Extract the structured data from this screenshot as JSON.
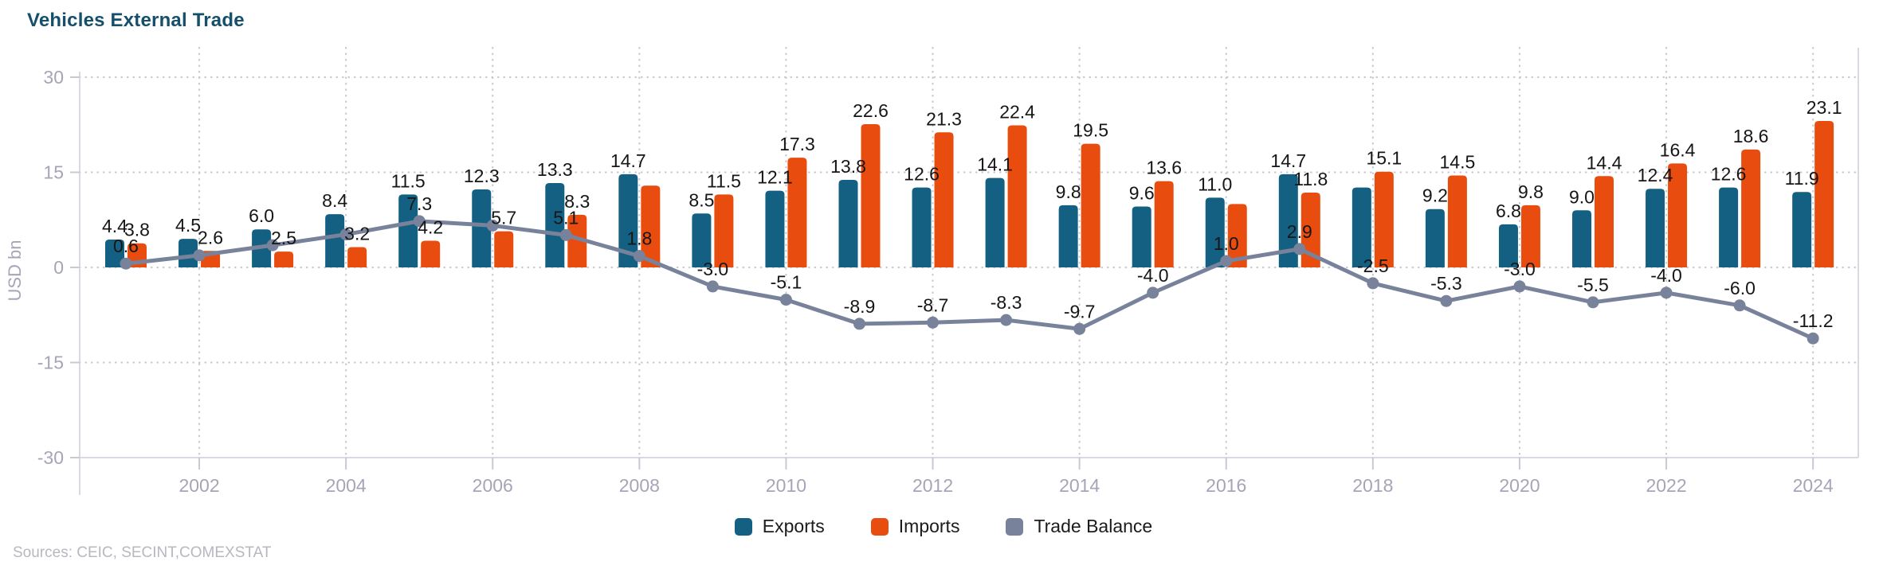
{
  "title": "Vehicles External Trade",
  "sources": "Sources: CEIC, SECINT,COMEXSTAT",
  "y_axis": {
    "label": "USD bn",
    "ticks": [
      "30",
      "15",
      "0",
      "-15",
      "-30"
    ]
  },
  "x_axis": {
    "ticks": [
      "2002",
      "2004",
      "2006",
      "2008",
      "2010",
      "2012",
      "2014",
      "2016",
      "2018",
      "2020",
      "2022",
      "2024"
    ]
  },
  "legend": [
    {
      "label": "Exports",
      "color": "#136083"
    },
    {
      "label": "Imports",
      "color": "#e84d0f"
    },
    {
      "label": "Trade Balance",
      "color": "#78829b"
    }
  ],
  "colors": {
    "background": "#ffffff",
    "exports": "#136083",
    "imports": "#e84d0f",
    "trade_balance": "#78829b",
    "grid": "#c9c9d3",
    "axis": "#d9d9e1",
    "tick_text": "#a5a5b7",
    "label_text": "#161616",
    "title": "#14506c",
    "sources": "#b7b7c2"
  },
  "chart_data": {
    "type": "bar",
    "subtype": "grouped bars with line overlay",
    "title": "Vehicles External Trade",
    "xlabel": "",
    "ylabel": "USD bn",
    "ylim": [
      -30,
      30
    ],
    "y_ticks": [
      30,
      15,
      0,
      -15,
      -30
    ],
    "x_tick_years": [
      2002,
      2004,
      2006,
      2008,
      2010,
      2012,
      2014,
      2016,
      2018,
      2020,
      2022,
      2024
    ],
    "grid": true,
    "legend_position": "bottom",
    "categories": [
      2001,
      2002,
      2003,
      2004,
      2005,
      2006,
      2007,
      2008,
      2009,
      2010,
      2011,
      2012,
      2013,
      2014,
      2015,
      2016,
      2017,
      2018,
      2019,
      2020,
      2021,
      2022,
      2023,
      2024
    ],
    "series": [
      {
        "name": "Exports",
        "type": "bar",
        "color": "#136083",
        "values": [
          4.4,
          4.5,
          6.0,
          8.4,
          11.5,
          12.3,
          13.3,
          14.7,
          8.5,
          12.1,
          13.8,
          12.6,
          14.1,
          9.8,
          9.6,
          11.0,
          14.7,
          12.6,
          9.2,
          6.8,
          9.0,
          12.4,
          12.6,
          11.9
        ],
        "data_labels": [
          "4.4",
          "4.5",
          "6.0",
          "8.4",
          "11.5",
          "12.3",
          "13.3",
          "14.7",
          "8.5",
          "12.1",
          "13.8",
          "12.6",
          "14.1",
          "9.8",
          "9.6",
          "11.0",
          "14.7",
          "",
          "9.2",
          "6.8",
          "9.0",
          "12.4",
          "12.6",
          "11.9"
        ]
      },
      {
        "name": "Imports",
        "type": "bar",
        "color": "#e84d0f",
        "values": [
          3.8,
          2.6,
          2.5,
          3.2,
          4.2,
          5.7,
          8.3,
          12.9,
          11.5,
          17.3,
          22.6,
          21.3,
          22.4,
          19.5,
          13.6,
          10.0,
          11.8,
          15.1,
          14.5,
          9.8,
          14.4,
          16.4,
          18.6,
          23.1
        ],
        "data_labels": [
          "3.8",
          "2.6",
          "2.5",
          "3.2",
          "4.2",
          "5.7",
          "8.3",
          "",
          "11.5",
          "17.3",
          "22.6",
          "21.3",
          "22.4",
          "19.5",
          "13.6",
          "",
          "11.8",
          "15.1",
          "14.5",
          "9.8",
          "14.4",
          "16.4",
          "18.6",
          "23.1"
        ]
      },
      {
        "name": "Trade Balance",
        "type": "line",
        "color": "#78829b",
        "values": [
          0.6,
          1.9,
          3.5,
          5.2,
          7.3,
          6.6,
          5.1,
          1.8,
          -3.0,
          -5.1,
          -8.9,
          -8.7,
          -8.3,
          -9.7,
          -4.0,
          1.0,
          2.9,
          -2.5,
          -5.3,
          -3.0,
          -5.5,
          -4.0,
          -6.0,
          -11.2
        ],
        "data_labels": [
          "0.6",
          "",
          "",
          "",
          "7.3",
          "",
          "5.1",
          "1.8",
          "-3.0",
          "-5.1",
          "-8.9",
          "-8.7",
          "-8.3",
          "-9.7",
          "-4.0",
          "1.0",
          "2.9",
          "-2.5",
          "-5.3",
          "-3.0",
          "-5.5",
          "-4.0",
          "-6.0",
          "-11.2"
        ]
      }
    ]
  }
}
